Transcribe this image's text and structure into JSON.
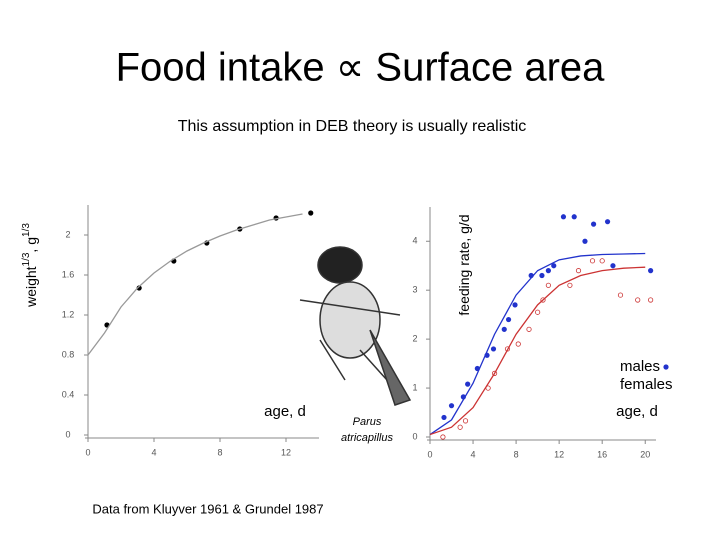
{
  "title": "Food intake ∝ Surface area",
  "subtitle": "This assumption in DEB theory is usually realistic",
  "source": "Data from Kluyver 1961 & Grundel 1987",
  "image_caption": [
    "Parus",
    "atricapillus"
  ],
  "chart_data": [
    {
      "type": "scatter",
      "y_label": [
        "weight",
        "1/3",
        ", g",
        "1/3"
      ],
      "x_label": "age, d",
      "xlim": [
        0,
        14
      ],
      "ylim": [
        0,
        2.3
      ],
      "xticks": [
        0,
        4,
        8,
        12
      ],
      "yticks": [
        0,
        0.4,
        0.8,
        1.2,
        1.6,
        2
      ],
      "series": [
        {
          "color": "#000000",
          "style": "markers",
          "x": [
            1.15,
            3.1,
            5.2,
            7.2,
            9.2,
            11.4,
            13.5
          ],
          "values": [
            1.1,
            1.47,
            1.74,
            1.92,
            2.06,
            2.17,
            2.22
          ]
        },
        {
          "color": "#999999",
          "style": "line",
          "x": [
            0,
            1,
            2,
            3,
            4,
            5,
            6,
            7,
            8,
            9,
            10,
            11,
            12,
            13
          ],
          "values": [
            0.8,
            1.02,
            1.28,
            1.47,
            1.62,
            1.74,
            1.84,
            1.92,
            1.99,
            2.05,
            2.1,
            2.15,
            2.18,
            2.21
          ]
        }
      ]
    },
    {
      "type": "scatter",
      "y_label": [
        "feeding rate, g/d"
      ],
      "x_label": "age, d",
      "xlim": [
        0,
        21
      ],
      "ylim": [
        0,
        4.7
      ],
      "xticks": [
        0,
        4,
        8,
        12,
        16,
        20
      ],
      "yticks": [
        0,
        1,
        2,
        3,
        4
      ],
      "series": [
        {
          "name": "males",
          "color": "#2233cc",
          "style": "markers",
          "x": [
            1.3,
            2,
            3.1,
            3.5,
            4.4,
            5.3,
            5.9,
            6.9,
            7.3,
            7.9,
            9.4,
            10.4,
            11,
            11.5,
            12.4,
            13.4,
            14.4,
            15.2,
            16.5,
            17,
            20.5
          ],
          "values": [
            0.4,
            0.64,
            0.82,
            1.08,
            1.4,
            1.67,
            1.8,
            2.2,
            2.4,
            2.7,
            3.3,
            3.3,
            3.4,
            3.5,
            4.5,
            4.5,
            4.0,
            4.35,
            4.4,
            3.5,
            3.4
          ]
        },
        {
          "name": "females",
          "color": "#cc3333",
          "style": "open",
          "x": [
            1.2,
            2.8,
            3.3,
            5.4,
            6,
            7.2,
            8.2,
            9.2,
            10,
            10.5,
            11,
            13,
            13.8,
            15.1,
            16,
            17.7,
            19.3,
            20.5
          ],
          "values": [
            0,
            0.2,
            0.33,
            1.0,
            1.3,
            1.8,
            1.9,
            2.2,
            2.55,
            2.8,
            3.1,
            3.1,
            3.4,
            3.6,
            3.6,
            2.9,
            2.8,
            2.8
          ]
        },
        {
          "color": "#2233cc",
          "style": "line",
          "x": [
            0,
            2,
            4,
            6,
            8,
            10,
            12,
            14,
            16,
            18,
            20
          ],
          "values": [
            0.05,
            0.35,
            1.1,
            2.1,
            2.9,
            3.4,
            3.62,
            3.7,
            3.73,
            3.74,
            3.75
          ]
        },
        {
          "color": "#cc3333",
          "style": "line",
          "x": [
            0,
            2,
            4,
            6,
            8,
            10,
            12,
            14,
            16,
            18,
            20
          ],
          "values": [
            0.05,
            0.2,
            0.6,
            1.3,
            2.1,
            2.7,
            3.1,
            3.3,
            3.4,
            3.45,
            3.47
          ]
        }
      ]
    }
  ]
}
